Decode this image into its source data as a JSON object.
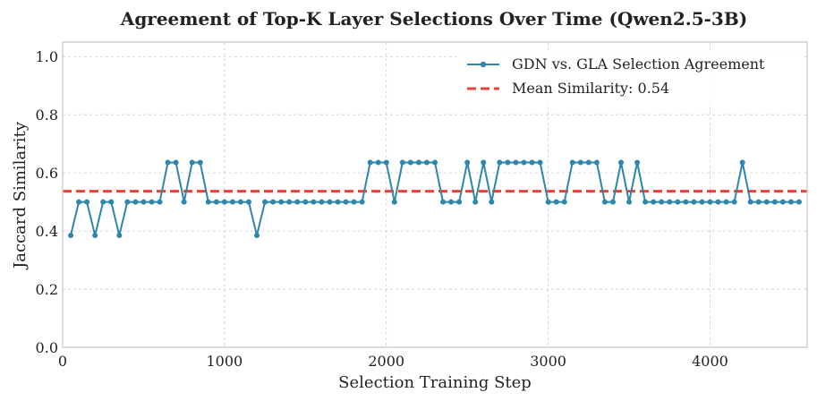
{
  "chart_data": {
    "type": "line",
    "title": "Agreement of Top-K Layer Selections Over Time (Qwen2.5-3B)",
    "xlabel": "Selection Training Step",
    "ylabel": "Jaccard Similarity",
    "xlim": [
      0,
      4600
    ],
    "ylim": [
      0.0,
      1.05
    ],
    "xticks": [
      0,
      1000,
      2000,
      3000,
      4000
    ],
    "xtick_labels": [
      "0",
      "1000",
      "2000",
      "3000",
      "4000"
    ],
    "yticks": [
      0.0,
      0.2,
      0.4,
      0.6,
      0.8,
      1.0
    ],
    "ytick_labels": [
      "0.0",
      "0.2",
      "0.4",
      "0.6",
      "0.8",
      "1.0"
    ],
    "grid": true,
    "legend_position": "top-right",
    "series": [
      {
        "name": "GDN vs. GLA Selection Agreement",
        "color": "#2e86ab",
        "marker": "circle",
        "x": [
          50,
          100,
          150,
          200,
          250,
          300,
          350,
          400,
          450,
          500,
          550,
          600,
          650,
          700,
          750,
          800,
          850,
          900,
          950,
          1000,
          1050,
          1100,
          1150,
          1200,
          1250,
          1300,
          1350,
          1400,
          1450,
          1500,
          1550,
          1600,
          1650,
          1700,
          1750,
          1800,
          1850,
          1900,
          1950,
          2000,
          2050,
          2100,
          2150,
          2200,
          2250,
          2300,
          2350,
          2400,
          2450,
          2500,
          2550,
          2600,
          2650,
          2700,
          2750,
          2800,
          2850,
          2900,
          2950,
          3000,
          3050,
          3100,
          3150,
          3200,
          3250,
          3300,
          3350,
          3400,
          3450,
          3500,
          3550,
          3600,
          3650,
          3700,
          3750,
          3800,
          3850,
          3900,
          3950,
          4000,
          4050,
          4100,
          4150,
          4200,
          4250,
          4300,
          4350,
          4400,
          4450,
          4500,
          4550
        ],
        "values": [
          0.385,
          0.5,
          0.5,
          0.385,
          0.5,
          0.5,
          0.385,
          0.5,
          0.5,
          0.5,
          0.5,
          0.5,
          0.636,
          0.636,
          0.5,
          0.636,
          0.636,
          0.5,
          0.5,
          0.5,
          0.5,
          0.5,
          0.5,
          0.385,
          0.5,
          0.5,
          0.5,
          0.5,
          0.5,
          0.5,
          0.5,
          0.5,
          0.5,
          0.5,
          0.5,
          0.5,
          0.5,
          0.636,
          0.636,
          0.636,
          0.5,
          0.636,
          0.636,
          0.636,
          0.636,
          0.636,
          0.5,
          0.5,
          0.5,
          0.636,
          0.5,
          0.636,
          0.5,
          0.636,
          0.636,
          0.636,
          0.636,
          0.636,
          0.636,
          0.5,
          0.5,
          0.5,
          0.636,
          0.636,
          0.636,
          0.636,
          0.5,
          0.5,
          0.636,
          0.5,
          0.636,
          0.5,
          0.5,
          0.5,
          0.5,
          0.5,
          0.5,
          0.5,
          0.5,
          0.5,
          0.5,
          0.5,
          0.5,
          0.636,
          0.5,
          0.5,
          0.5,
          0.5,
          0.5,
          0.5,
          0.5
        ]
      }
    ],
    "reference_line": {
      "name": "Mean Similarity: 0.54",
      "value": 0.537,
      "color": "#e8423a",
      "style": "dashed"
    }
  }
}
